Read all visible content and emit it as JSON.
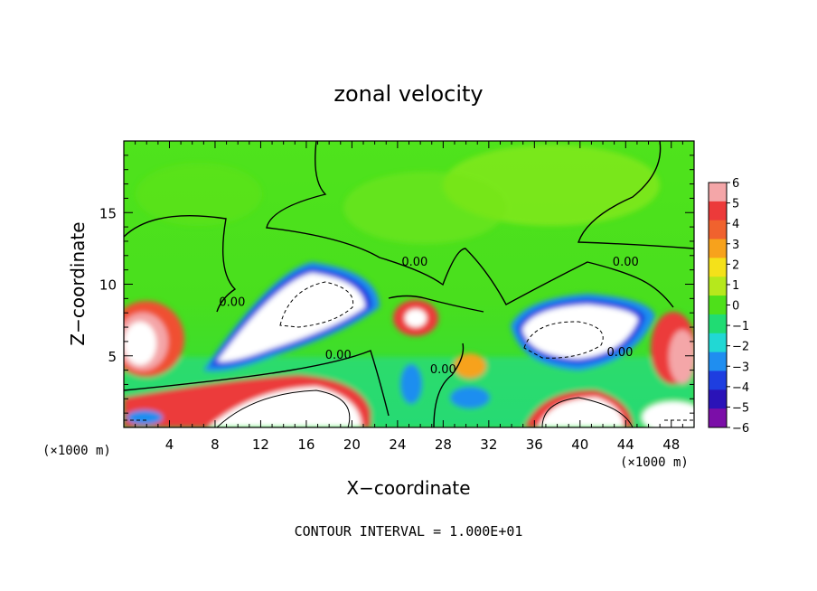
{
  "chart_data": {
    "type": "heatmap",
    "title": "zonal velocity",
    "xlabel": "X−coordinate",
    "ylabel": "Z−coordinate",
    "x_unit_left": "(×1000 m)",
    "x_unit_right": "(×1000 m)",
    "footer": "CONTOUR INTERVAL = 1.000E+01",
    "xlim": [
      0,
      50
    ],
    "ylim": [
      0,
      20
    ],
    "x_ticks": [
      4,
      8,
      12,
      16,
      20,
      24,
      28,
      32,
      36,
      40,
      44,
      48
    ],
    "x_tick_labels": [
      "4",
      "8",
      "12",
      "16",
      "20",
      "24",
      "28",
      "32",
      "36",
      "40",
      "44",
      "48"
    ],
    "y_ticks": [
      5,
      10,
      15
    ],
    "y_tick_labels": [
      "5",
      "10",
      "15"
    ],
    "contour_labels": [
      {
        "text": "0.00",
        "x": 25.5,
        "y": 11.3
      },
      {
        "text": "0.00",
        "x": 44.0,
        "y": 11.3
      },
      {
        "text": "0.00",
        "x": 18.8,
        "y": 4.8
      },
      {
        "text": "0.00",
        "x": 9.5,
        "y": 8.5
      },
      {
        "text": "0.00",
        "x": 28.0,
        "y": 3.8
      },
      {
        "text": "0.00",
        "x": 43.5,
        "y": 5.0
      }
    ],
    "colorbar": {
      "range": [
        -6,
        6
      ],
      "tick_labels": [
        "6",
        "5",
        "4",
        "3",
        "2",
        "1",
        "0",
        "−1",
        "−2",
        "−3",
        "−4",
        "−5",
        "−6"
      ],
      "colors": [
        "#f4a6a8",
        "#ec3a3a",
        "#f0622e",
        "#f7a21c",
        "#f4e11a",
        "#b6e81c",
        "#4ee01a",
        "#20dc73",
        "#21d8d4",
        "#1f8ef0",
        "#1e3ee0",
        "#2a13b8",
        "#7b0ea8"
      ]
    },
    "grid": false
  }
}
